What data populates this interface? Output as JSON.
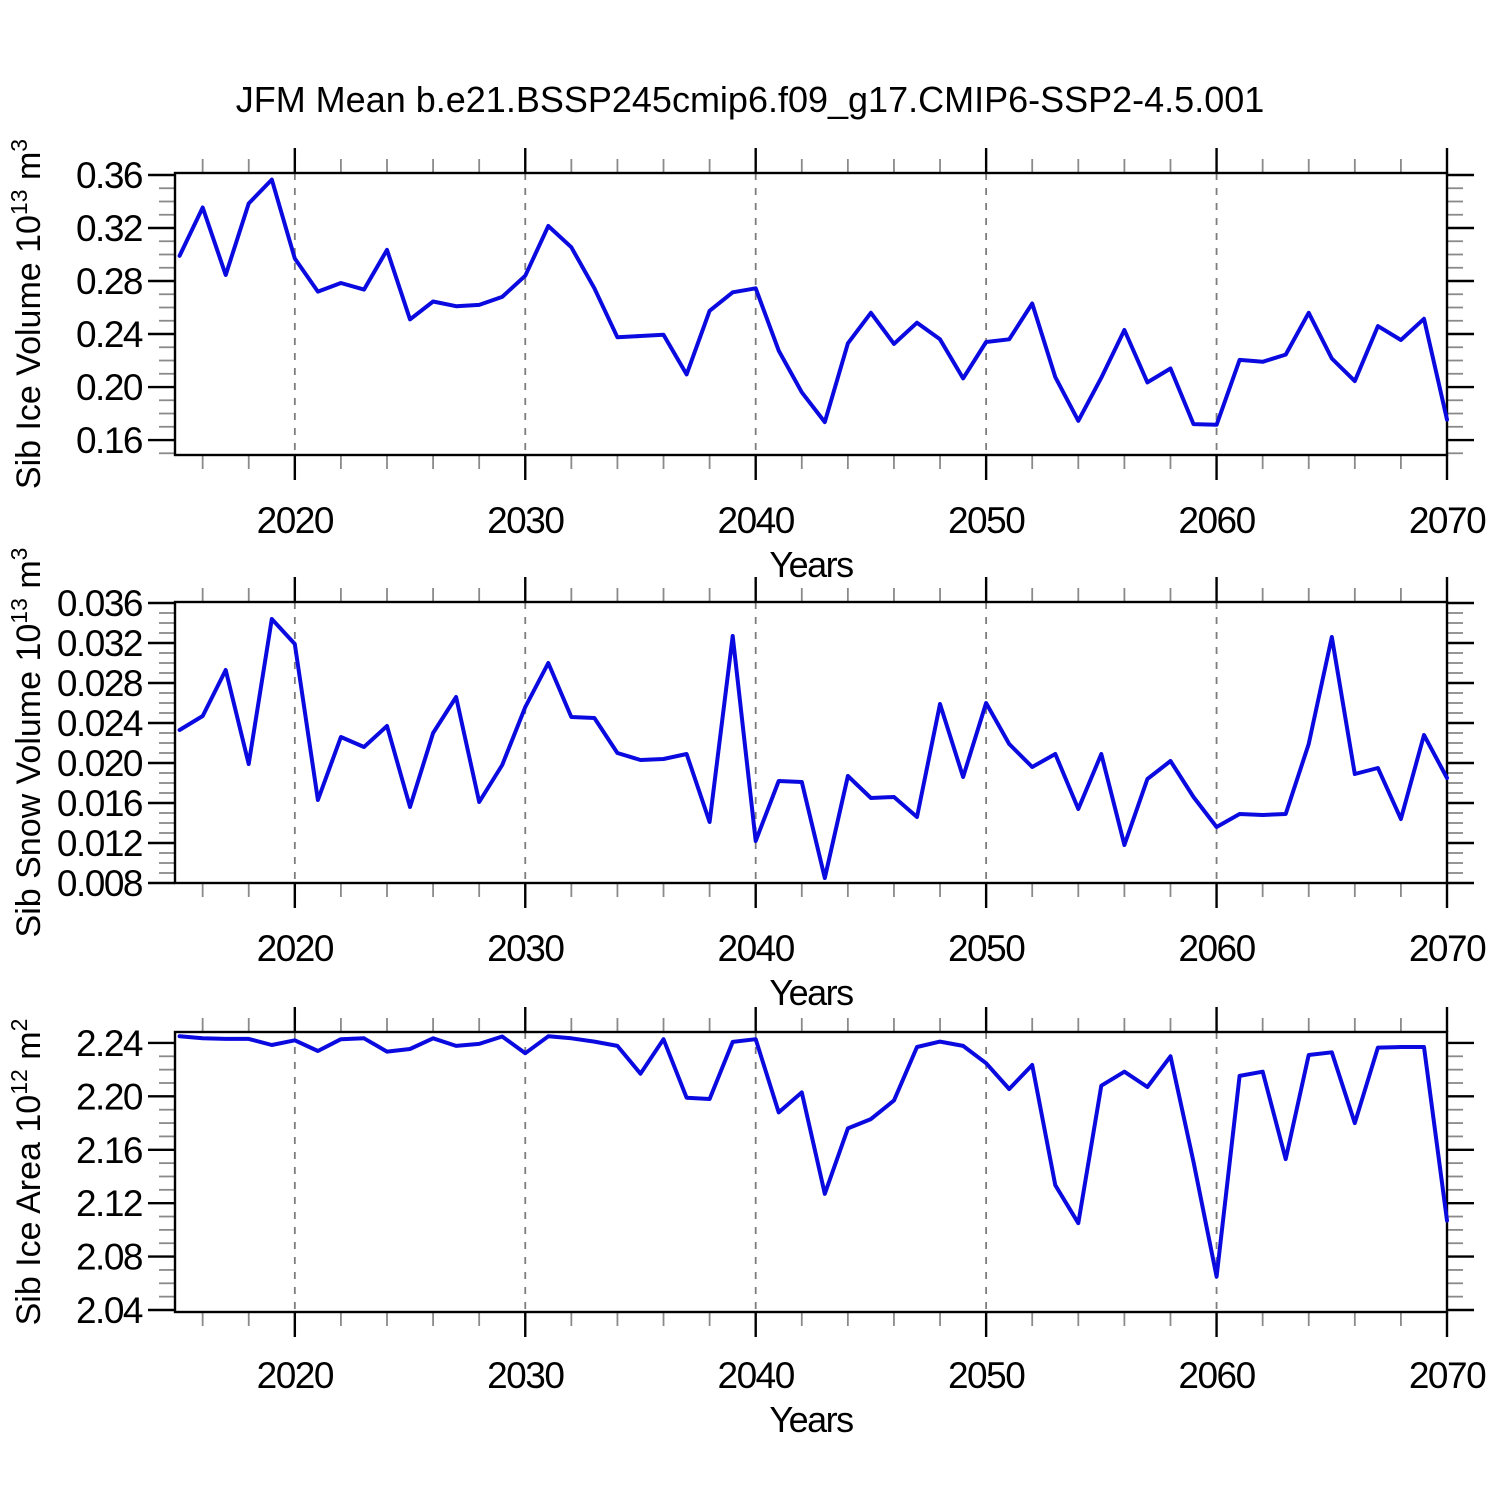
{
  "title": "JFM Mean b.e21.BSSP245cmip6.f09_g17.CMIP6-SSP2-4.5.001",
  "colors": {
    "line": "#0a0ae0",
    "frame": "#000000",
    "gridline": "#7d7d7d",
    "minor_tick": "#8a8a8a",
    "text": "#000000"
  },
  "x_axis": {
    "label": "Years",
    "tick_labels": [
      "2020",
      "2030",
      "2040",
      "2050",
      "2060",
      "2070"
    ],
    "tick_values": [
      2020,
      2030,
      2040,
      2050,
      2060,
      2070
    ],
    "minor_start": 2016,
    "minor_step": 2,
    "lim": [
      2014.8,
      2070
    ],
    "gridlines": [
      2020,
      2030,
      2040,
      2050,
      2060
    ]
  },
  "chart_data": [
    {
      "id": "sib-ice-volume",
      "type": "line",
      "ylabel": "Sib Ice Volume 10^13 m^3",
      "ylabel_parts": [
        {
          "t": "Sib Ice Volume 10"
        },
        {
          "t": "13",
          "sup": true
        },
        {
          "t": " m"
        },
        {
          "t": "3",
          "sup": true
        }
      ],
      "xlabel": "Years",
      "ylim": [
        0.1487,
        0.3615
      ],
      "ytick_values": [
        0.16,
        0.2,
        0.24,
        0.28,
        0.32,
        0.36
      ],
      "ytick_labels": [
        "0.16",
        "0.20",
        "0.24",
        "0.28",
        "0.32",
        "0.36"
      ],
      "yminor_from": 0.15,
      "yminor_to": 0.36,
      "yminor_step": 0.01,
      "x": [
        2015,
        2016,
        2017,
        2018,
        2019,
        2020,
        2021,
        2022,
        2023,
        2024,
        2025,
        2026,
        2027,
        2028,
        2029,
        2030,
        2031,
        2032,
        2033,
        2034,
        2035,
        2036,
        2037,
        2038,
        2039,
        2040,
        2041,
        2042,
        2043,
        2044,
        2045,
        2046,
        2047,
        2048,
        2049,
        2050,
        2051,
        2052,
        2053,
        2054,
        2055,
        2056,
        2057,
        2058,
        2059,
        2060,
        2061,
        2062,
        2063,
        2064,
        2065,
        2066,
        2067,
        2068,
        2069,
        2070
      ],
      "values": [
        0.299,
        0.3355,
        0.2845,
        0.3385,
        0.3565,
        0.297,
        0.272,
        0.2785,
        0.2735,
        0.3035,
        0.251,
        0.2645,
        0.261,
        0.262,
        0.268,
        0.284,
        0.3215,
        0.3055,
        0.2745,
        0.2375,
        0.2385,
        0.2395,
        0.2095,
        0.2575,
        0.2715,
        0.2745,
        0.2275,
        0.196,
        0.1735,
        0.233,
        0.256,
        0.2325,
        0.2485,
        0.236,
        0.2065,
        0.234,
        0.236,
        0.263,
        0.2075,
        0.1745,
        0.207,
        0.243,
        0.2035,
        0.214,
        0.172,
        0.1715,
        0.2205,
        0.219,
        0.2245,
        0.256,
        0.2215,
        0.2045,
        0.246,
        0.2355,
        0.2515,
        0.1755
      ]
    },
    {
      "id": "sib-snow-volume",
      "type": "line",
      "ylabel": "Sib Snow Volume 10^13 m^3",
      "ylabel_parts": [
        {
          "t": "Sib Snow Volume 10"
        },
        {
          "t": "13",
          "sup": true
        },
        {
          "t": " m"
        },
        {
          "t": "3",
          "sup": true
        }
      ],
      "xlabel": "Years",
      "ylim": [
        0.008,
        0.0361
      ],
      "ytick_values": [
        0.008,
        0.012,
        0.016,
        0.02,
        0.024,
        0.028,
        0.032,
        0.036
      ],
      "ytick_labels": [
        "0.008",
        "0.012",
        "0.016",
        "0.020",
        "0.024",
        "0.028",
        "0.032",
        "0.036"
      ],
      "yminor_from": 0.009,
      "yminor_to": 0.036,
      "yminor_step": 0.001,
      "x": [
        2015,
        2016,
        2017,
        2018,
        2019,
        2020,
        2021,
        2022,
        2023,
        2024,
        2025,
        2026,
        2027,
        2028,
        2029,
        2030,
        2031,
        2032,
        2033,
        2034,
        2035,
        2036,
        2037,
        2038,
        2039,
        2040,
        2041,
        2042,
        2043,
        2044,
        2045,
        2046,
        2047,
        2048,
        2049,
        2050,
        2051,
        2052,
        2053,
        2054,
        2055,
        2056,
        2057,
        2058,
        2059,
        2060,
        2061,
        2062,
        2063,
        2064,
        2065,
        2066,
        2067,
        2068,
        2069,
        2070
      ],
      "values": [
        0.0233,
        0.0247,
        0.0293,
        0.0199,
        0.0344,
        0.0319,
        0.0163,
        0.0226,
        0.0216,
        0.0237,
        0.0156,
        0.023,
        0.0266,
        0.0161,
        0.0198,
        0.0256,
        0.03,
        0.0246,
        0.0245,
        0.021,
        0.0203,
        0.0204,
        0.0209,
        0.0141,
        0.0327,
        0.0122,
        0.0182,
        0.0181,
        0.0085,
        0.0187,
        0.0165,
        0.0166,
        0.0146,
        0.0259,
        0.0186,
        0.026,
        0.0219,
        0.0196,
        0.0209,
        0.0154,
        0.0209,
        0.0118,
        0.0184,
        0.0202,
        0.0166,
        0.0136,
        0.0149,
        0.0148,
        0.0149,
        0.0219,
        0.0326,
        0.0189,
        0.0195,
        0.0144,
        0.0228,
        0.0185
      ]
    },
    {
      "id": "sib-ice-area",
      "type": "line",
      "ylabel": "Sib Ice Area 10^12 m^2",
      "ylabel_parts": [
        {
          "t": "Sib Ice Area 10"
        },
        {
          "t": "12",
          "sup": true
        },
        {
          "t": " m"
        },
        {
          "t": "2",
          "sup": true
        }
      ],
      "xlabel": "Years",
      "ylim": [
        2.0385,
        2.2482
      ],
      "ytick_values": [
        2.04,
        2.08,
        2.12,
        2.16,
        2.2,
        2.24
      ],
      "ytick_labels": [
        "2.04",
        "2.08",
        "2.12",
        "2.16",
        "2.20",
        "2.24"
      ],
      "yminor_from": 2.05,
      "yminor_to": 2.24,
      "yminor_step": 0.01,
      "x": [
        2015,
        2016,
        2017,
        2018,
        2019,
        2020,
        2021,
        2022,
        2023,
        2024,
        2025,
        2026,
        2027,
        2028,
        2029,
        2030,
        2031,
        2032,
        2033,
        2034,
        2035,
        2036,
        2037,
        2038,
        2039,
        2040,
        2041,
        2042,
        2043,
        2044,
        2045,
        2046,
        2047,
        2048,
        2049,
        2050,
        2051,
        2052,
        2053,
        2054,
        2055,
        2056,
        2057,
        2058,
        2059,
        2060,
        2061,
        2062,
        2063,
        2064,
        2065,
        2066,
        2067,
        2068,
        2069,
        2070
      ],
      "values": [
        2.245,
        2.2435,
        2.243,
        2.243,
        2.2385,
        2.242,
        2.234,
        2.2428,
        2.2435,
        2.2335,
        2.2355,
        2.2435,
        2.2378,
        2.2393,
        2.2448,
        2.2323,
        2.245,
        2.2435,
        2.241,
        2.2378,
        2.217,
        2.2428,
        2.199,
        2.198,
        2.2408,
        2.2428,
        2.188,
        2.203,
        2.127,
        2.176,
        2.183,
        2.197,
        2.237,
        2.241,
        2.2378,
        2.2248,
        2.2055,
        2.2235,
        2.1335,
        2.105,
        2.208,
        2.2185,
        2.207,
        2.23,
        2.151,
        2.065,
        2.2153,
        2.2185,
        2.153,
        2.231,
        2.233,
        2.18,
        2.2365,
        2.237,
        2.237,
        2.107
      ]
    }
  ]
}
